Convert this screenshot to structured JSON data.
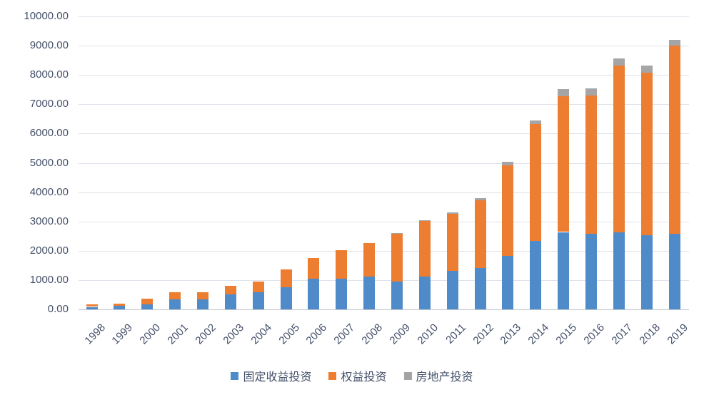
{
  "chart_data": {
    "type": "bar",
    "stacked": true,
    "title": "",
    "xlabel": "",
    "ylabel": "",
    "categories": [
      "1998",
      "1999",
      "2000",
      "2001",
      "2002",
      "2003",
      "2004",
      "2005",
      "2006",
      "2007",
      "2008",
      "2009",
      "2010",
      "2011",
      "2012",
      "2013",
      "2014",
      "2015",
      "2016",
      "2017",
      "2018",
      "2019"
    ],
    "series": [
      {
        "name": "固定收益投资",
        "color": "#4f8bc9",
        "values": [
          85,
          115,
          160,
          330,
          350,
          520,
          580,
          750,
          1040,
          1050,
          1110,
          960,
          1130,
          1320,
          1420,
          1830,
          2330,
          2640,
          2590,
          2620,
          2530,
          2575
        ]
      },
      {
        "name": "权益投资",
        "color": "#ed7d31",
        "values": [
          75,
          75,
          195,
          260,
          230,
          280,
          380,
          620,
          710,
          960,
          1150,
          1610,
          1880,
          1930,
          2310,
          3090,
          3990,
          4630,
          4720,
          5710,
          5550,
          6430
        ]
      },
      {
        "name": "房地产投资",
        "color": "#a5a5a5",
        "values": [
          0,
          0,
          0,
          0,
          0,
          0,
          0,
          0,
          0,
          0,
          0,
          30,
          35,
          50,
          70,
          110,
          130,
          250,
          240,
          230,
          245,
          195
        ]
      }
    ],
    "ylim": [
      0,
      10000
    ],
    "y_tick_step": 1000,
    "y_tick_labels": [
      "0.00",
      "1000.00",
      "2000.00",
      "3000.00",
      "4000.00",
      "5000.00",
      "6000.00",
      "7000.00",
      "8000.00",
      "9000.00",
      "10000.00"
    ],
    "grid": true,
    "legend_position": "bottom",
    "colors": {
      "grid": "#dfe2ea",
      "axis_line": "#c3c7d0",
      "tick_text": "#44506a"
    }
  }
}
